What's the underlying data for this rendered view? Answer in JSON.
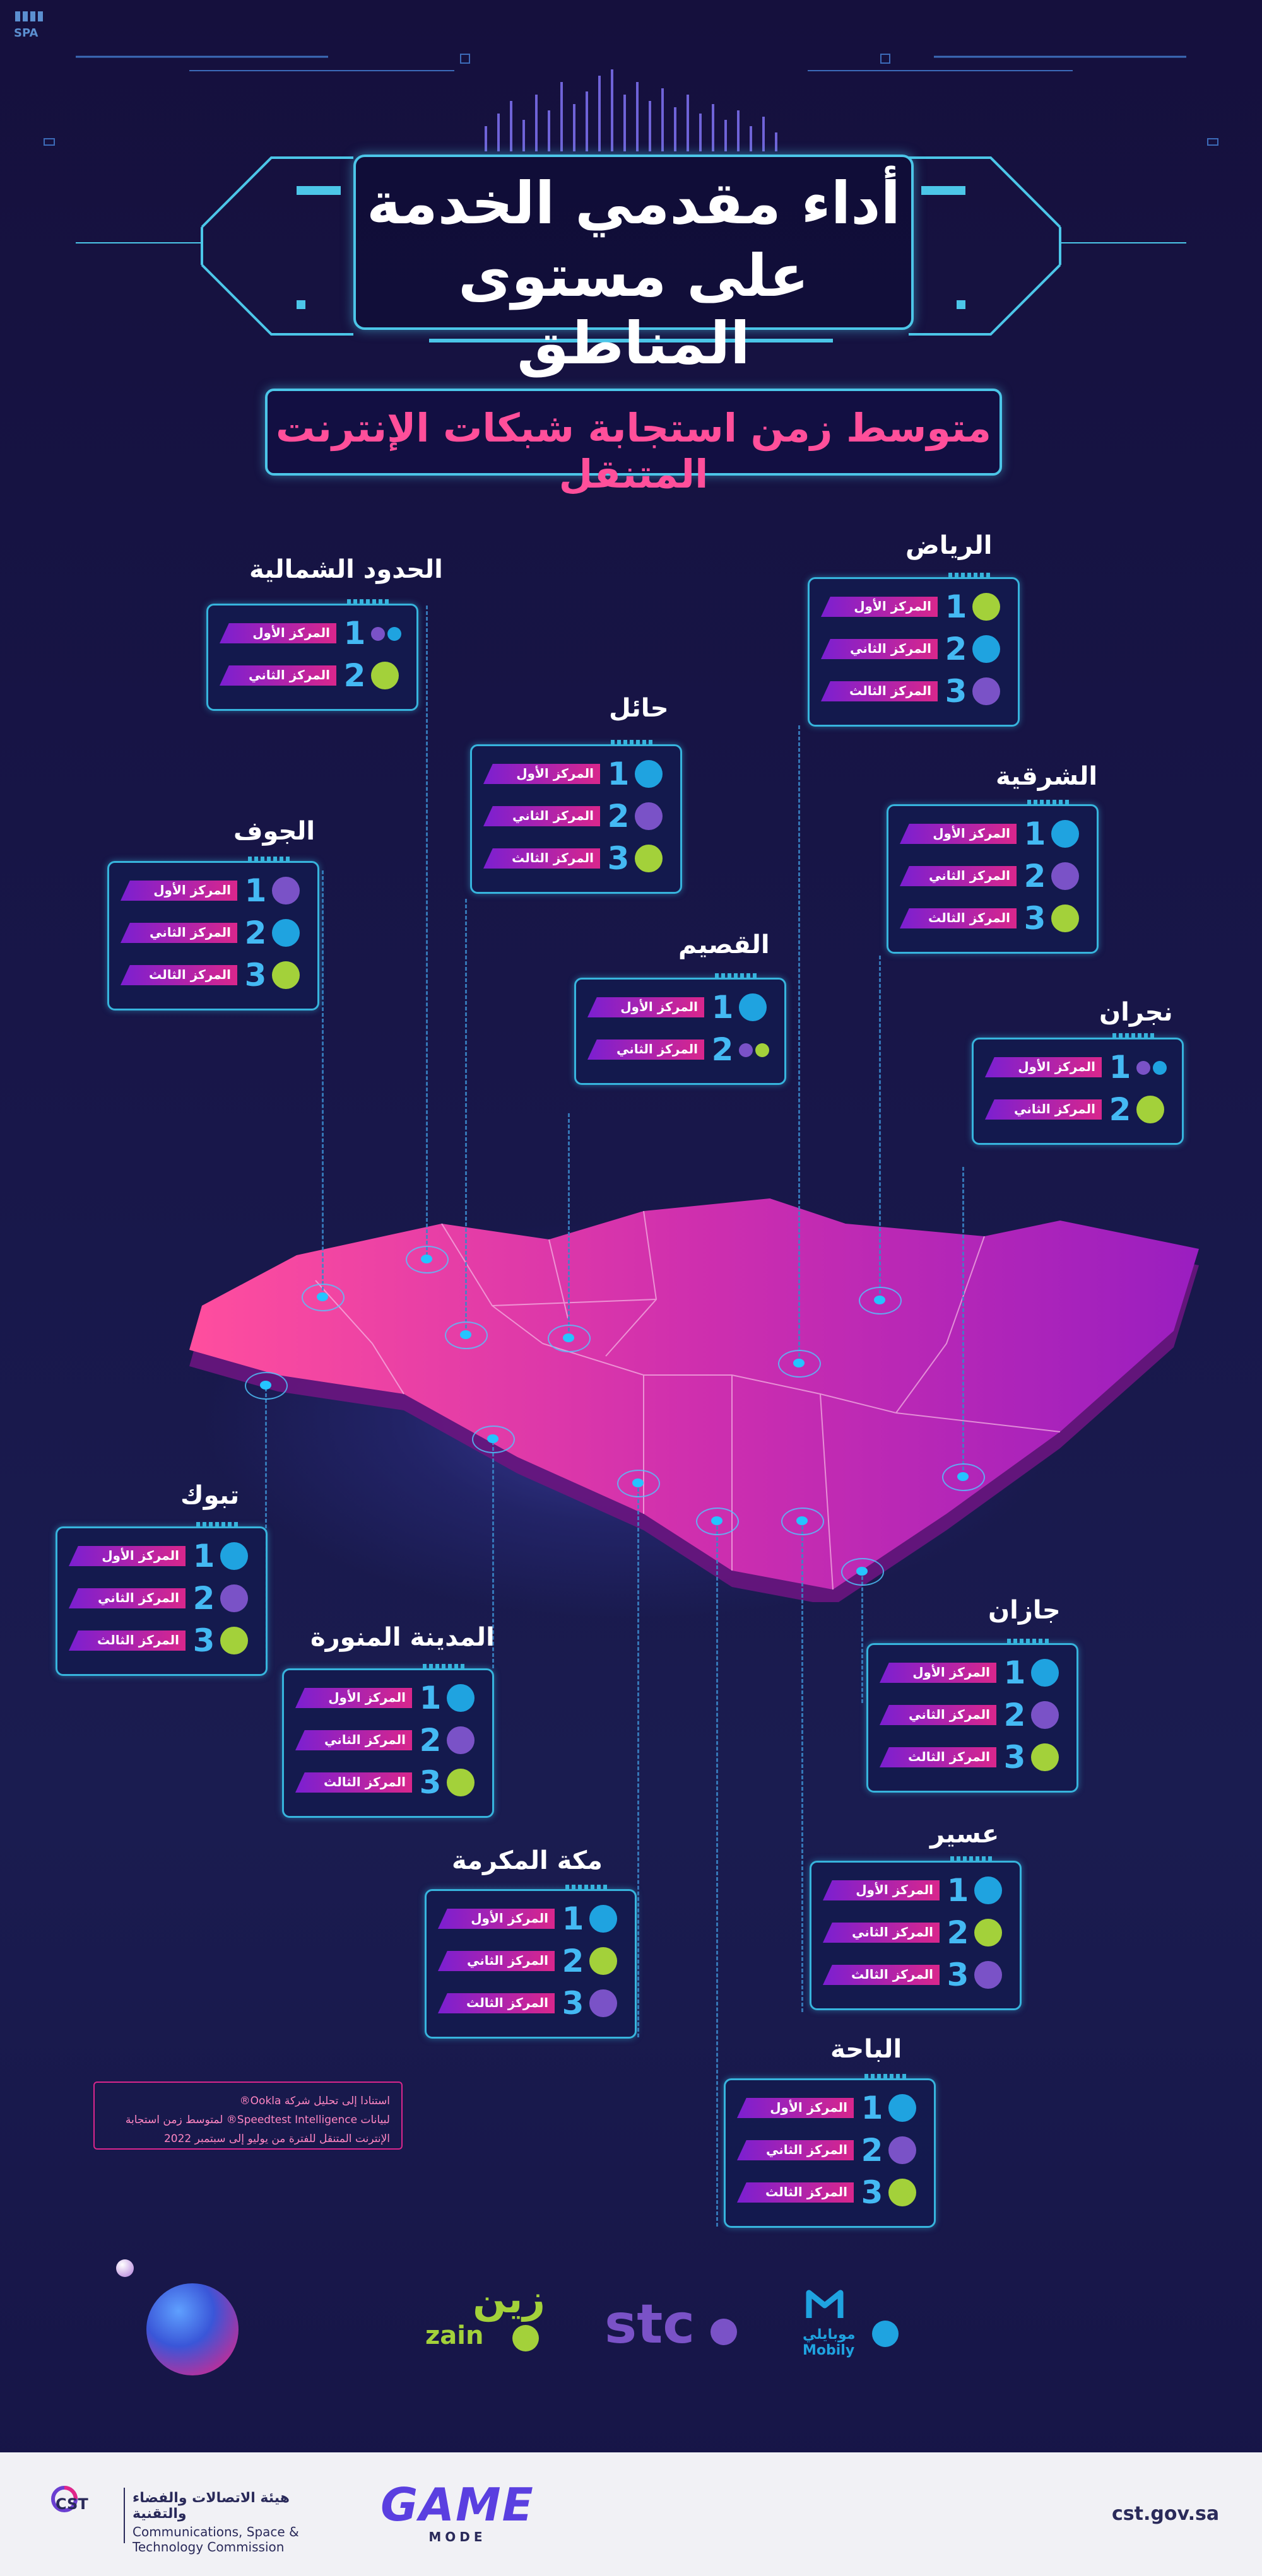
{
  "header": {
    "logo_text": "SPA",
    "title_line1": "أداء مقدمي الخدمة",
    "title_line2": "على مستوى المناطق",
    "subtitle": "متوسط زمن استجابة شبكات الإنترنت المتنقل"
  },
  "operators": {
    "stc": {
      "name": "stc",
      "color": "#7a52c7"
    },
    "mobily": {
      "name_ar": "موبايلي",
      "name": "Mobily",
      "color": "#1fa3e0"
    },
    "zain": {
      "name_ar": "زين",
      "name": "zain",
      "color": "#a3d13a"
    }
  },
  "rank_labels": {
    "first": "المركز الأول",
    "second": "المركز الثاني",
    "third": "المركز الثالث"
  },
  "regions": [
    {
      "name": "الحدود الشمالية",
      "rankings": [
        {
          "rank": "1",
          "label": "المركز الأول",
          "operators": [
            "stc",
            "mobily"
          ]
        },
        {
          "rank": "2",
          "label": "المركز الثاني",
          "operators": [
            "zain"
          ]
        }
      ]
    },
    {
      "name": "الرياض",
      "rankings": [
        {
          "rank": "1",
          "label": "المركز الأول",
          "operators": [
            "zain"
          ]
        },
        {
          "rank": "2",
          "label": "المركز الثاني",
          "operators": [
            "mobily"
          ]
        },
        {
          "rank": "3",
          "label": "المركز الثالث",
          "operators": [
            "stc"
          ]
        }
      ]
    },
    {
      "name": "حائل",
      "rankings": [
        {
          "rank": "1",
          "label": "المركز الأول",
          "operators": [
            "mobily"
          ]
        },
        {
          "rank": "2",
          "label": "المركز الثاني",
          "operators": [
            "stc"
          ]
        },
        {
          "rank": "3",
          "label": "المركز الثالث",
          "operators": [
            "zain"
          ]
        }
      ]
    },
    {
      "name": "الشرقية",
      "rankings": [
        {
          "rank": "1",
          "label": "المركز الأول",
          "operators": [
            "mobily"
          ]
        },
        {
          "rank": "2",
          "label": "المركز الثاني",
          "operators": [
            "stc"
          ]
        },
        {
          "rank": "3",
          "label": "المركز الثالث",
          "operators": [
            "zain"
          ]
        }
      ]
    },
    {
      "name": "الجوف",
      "rankings": [
        {
          "rank": "1",
          "label": "المركز الأول",
          "operators": [
            "stc"
          ]
        },
        {
          "rank": "2",
          "label": "المركز الثاني",
          "operators": [
            "mobily"
          ]
        },
        {
          "rank": "3",
          "label": "المركز الثالث",
          "operators": [
            "zain"
          ]
        }
      ]
    },
    {
      "name": "القصيم",
      "rankings": [
        {
          "rank": "1",
          "label": "المركز الأول",
          "operators": [
            "mobily"
          ]
        },
        {
          "rank": "2",
          "label": "المركز الثاني",
          "operators": [
            "stc",
            "zain"
          ]
        }
      ]
    },
    {
      "name": "نجران",
      "rankings": [
        {
          "rank": "1",
          "label": "المركز الأول",
          "operators": [
            "stc",
            "mobily"
          ]
        },
        {
          "rank": "2",
          "label": "المركز الثاني",
          "operators": [
            "zain"
          ]
        }
      ]
    },
    {
      "name": "تبوك",
      "rankings": [
        {
          "rank": "1",
          "label": "المركز الأول",
          "operators": [
            "mobily"
          ]
        },
        {
          "rank": "2",
          "label": "المركز الثاني",
          "operators": [
            "stc"
          ]
        },
        {
          "rank": "3",
          "label": "المركز الثالث",
          "operators": [
            "zain"
          ]
        }
      ]
    },
    {
      "name": "جازان",
      "rankings": [
        {
          "rank": "1",
          "label": "المركز الأول",
          "operators": [
            "mobily"
          ]
        },
        {
          "rank": "2",
          "label": "المركز الثاني",
          "operators": [
            "stc"
          ]
        },
        {
          "rank": "3",
          "label": "المركز الثالث",
          "operators": [
            "zain"
          ]
        }
      ]
    },
    {
      "name": "المدينة المنورة",
      "rankings": [
        {
          "rank": "1",
          "label": "المركز الأول",
          "operators": [
            "mobily"
          ]
        },
        {
          "rank": "2",
          "label": "المركز الثاني",
          "operators": [
            "stc"
          ]
        },
        {
          "rank": "3",
          "label": "المركز الثالث",
          "operators": [
            "zain"
          ]
        }
      ]
    },
    {
      "name": "عسير",
      "rankings": [
        {
          "rank": "1",
          "label": "المركز الأول",
          "operators": [
            "mobily"
          ]
        },
        {
          "rank": "2",
          "label": "المركز الثاني",
          "operators": [
            "zain"
          ]
        },
        {
          "rank": "3",
          "label": "المركز الثالث",
          "operators": [
            "stc"
          ]
        }
      ]
    },
    {
      "name": "مكة المكرمة",
      "rankings": [
        {
          "rank": "1",
          "label": "المركز الأول",
          "operators": [
            "mobily"
          ]
        },
        {
          "rank": "2",
          "label": "المركز الثاني",
          "operators": [
            "zain"
          ]
        },
        {
          "rank": "3",
          "label": "المركز الثالث",
          "operators": [
            "stc"
          ]
        }
      ]
    },
    {
      "name": "الباحة",
      "rankings": [
        {
          "rank": "1",
          "label": "المركز الأول",
          "operators": [
            "mobily"
          ]
        },
        {
          "rank": "2",
          "label": "المركز الثاني",
          "operators": [
            "stc"
          ]
        },
        {
          "rank": "3",
          "label": "المركز الثالث",
          "operators": [
            "zain"
          ]
        }
      ]
    }
  ],
  "source_note": {
    "line1": "استنادا إلى تحليل شركة Ookla®",
    "line2": "لبيانات Speedtest Intelligence® لمتوسط زمن استجابة",
    "line3": "الإنترنت المتنقل للفترة من يوليو إلى سبتمبر 2022"
  },
  "footer": {
    "cst_abbr": "CST",
    "org_ar": "هيئة الاتصالات والفضاء والتقنية",
    "org_en_line1": "Communications, Space &",
    "org_en_line2": "Technology Commission",
    "gamemode_line1": "GAME",
    "gamemode_line2": "MODE",
    "website": "cst.gov.sa"
  }
}
